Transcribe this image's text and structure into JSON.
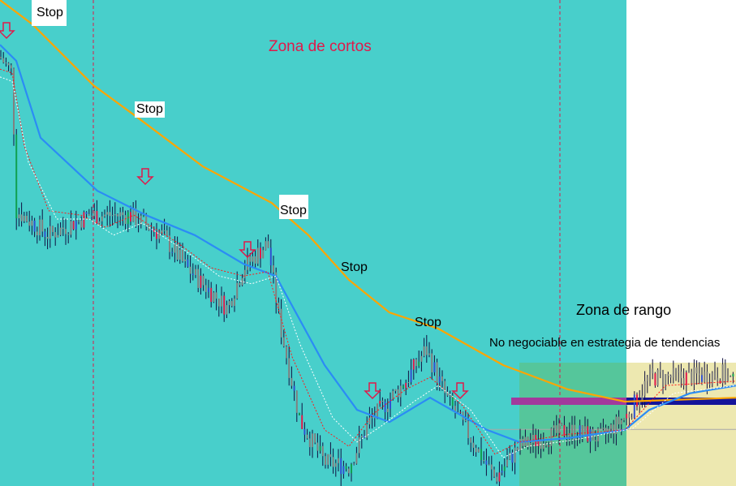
{
  "chart_data": {
    "type": "line",
    "title": "",
    "xlabel": "",
    "ylabel": "",
    "grid": false,
    "xlim": [
      0,
      90.7
    ],
    "ylim": [
      0,
      100
    ],
    "colors": {
      "background_short_zone": "#48cfcb",
      "range_zone_green": "#55c69b",
      "range_zone_yellow": "#ede8b0",
      "slow_ma": "#ffa500",
      "mid_ma": "#2b8cf5",
      "fast_ma": "#ff1a1a",
      "fast_ma2": "#ffffff",
      "sell_arrow": "#e0194a",
      "support_purple": "#a23a9c",
      "support_navy": "#14149a",
      "zone_title": "#e0194a"
    },
    "series": [
      {
        "key": "slow_ma",
        "style": "solid",
        "x": [
          0,
          4,
          11.5,
          17,
          25,
          33.5,
          38,
          43,
          48,
          54,
          62,
          70,
          77,
          90.7
        ],
        "y": [
          100.8,
          95,
          82.5,
          75.8,
          65.8,
          58.3,
          51.7,
          42.5,
          35.8,
          32.5,
          25,
          20,
          17.5,
          18.3
        ]
      },
      {
        "key": "mid_ma",
        "style": "solid",
        "x": [
          0,
          2,
          5,
          12,
          18,
          24,
          30,
          34,
          40,
          44,
          48,
          53,
          60,
          64,
          70,
          77,
          80,
          85,
          90.7
        ],
        "y": [
          90.8,
          87.5,
          71.7,
          60.8,
          55.8,
          51.7,
          45.8,
          43.3,
          25,
          15.8,
          13.3,
          18.3,
          11.7,
          9.2,
          10,
          11.7,
          15.8,
          19.2,
          20.8
        ]
      },
      {
        "key": "fast_ma",
        "style": "dashed",
        "x": [
          0,
          1.5,
          3,
          6,
          10,
          13,
          16.5,
          22,
          26,
          30,
          33,
          36,
          40,
          43,
          46,
          50,
          53,
          57,
          61,
          64,
          70,
          77,
          82,
          90.7
        ],
        "y": [
          85.8,
          85,
          70,
          56.7,
          55.8,
          53.3,
          55.8,
          50,
          45,
          43.3,
          44.2,
          26.7,
          11.7,
          8.3,
          15,
          20,
          22.5,
          16.7,
          6.7,
          9.2,
          10.8,
          11.7,
          20.8,
          21.7
        ]
      },
      {
        "key": "fast_ma2",
        "style": "dashed",
        "x": [
          0,
          1.5,
          3.5,
          7,
          11,
          14,
          17.5,
          23,
          27,
          31,
          34,
          37,
          41,
          44,
          47,
          51,
          54,
          58,
          62,
          65,
          71,
          78,
          83,
          90.7
        ],
        "y": [
          84.2,
          83.3,
          66.7,
          55,
          55,
          51.7,
          54.2,
          48.3,
          43.3,
          41.7,
          43.3,
          29.2,
          14.2,
          9.2,
          12.5,
          17.5,
          20.8,
          15.8,
          6,
          8.3,
          9.7,
          12,
          19.2,
          20.8
        ]
      }
    ],
    "price_path": {
      "x": [
        0,
        1.5,
        2,
        6,
        11,
        16,
        20,
        23,
        28,
        30,
        33,
        34.5,
        37,
        40,
        43,
        45.5,
        50,
        52.5,
        55,
        58,
        61,
        64,
        70,
        74,
        77.5,
        80,
        85,
        89,
        90.7
      ],
      "y": [
        88.3,
        85,
        56.7,
        51.7,
        55.8,
        55.8,
        51.7,
        45,
        36.7,
        45,
        50,
        33.3,
        13.3,
        5,
        4.2,
        13.3,
        21.7,
        28.3,
        18.3,
        10,
        1.7,
        8.3,
        11.7,
        10,
        15,
        22.5,
        22.5,
        23.3,
        20.8
      ]
    },
    "support_level": 17.5,
    "gray_level": 11.8,
    "vertical_markers_x": [
      11.5,
      69
    ],
    "range_zone_start_x": 64,
    "range_zone_top": 25.5,
    "yellow_zone_start_x": 77.2,
    "sell_signals": [
      {
        "x": 0.8,
        "y": 93.5
      },
      {
        "x": 17.9,
        "y": 63.5
      },
      {
        "x": 30.5,
        "y": 48.5
      },
      {
        "x": 45.9,
        "y": 19.5
      },
      {
        "x": 56.7,
        "y": 19.5
      }
    ]
  },
  "annotations": {
    "short_zone": "Zona de cortos",
    "range_zone": "Zona de rango",
    "range_note": "No negociable en estrategia de tendencias",
    "stops": [
      "Stop",
      "Stop",
      "Stop",
      "Stop",
      "Stop"
    ]
  }
}
